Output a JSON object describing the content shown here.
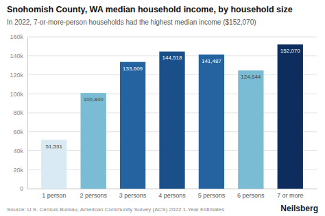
{
  "chart_data": {
    "type": "bar",
    "title": "Snohomish County, WA median household income, by household size",
    "subtitle": "In 2022, 7-or-more-person households had the highest median income ($152,070)",
    "annotations": [
      "Source: U.S. Census Bureau, American Community Survey (ACS) 2022 1-Year Estimates",
      "Neilsberg"
    ],
    "categories": [
      "1 person",
      "2 persons",
      "3 persons",
      "4 persons",
      "5 persons",
      "6 persons",
      "7 or more"
    ],
    "values": [
      51531,
      100840,
      133609,
      144518,
      141487,
      124644,
      152070
    ],
    "value_labels": [
      "51,531",
      "100,840",
      "133,609",
      "144,518",
      "141,487",
      "124,644",
      "152,070"
    ],
    "colors": [
      "#daeaf5",
      "#7bbcd5",
      "#2563a0",
      "#1a4f8a",
      "#2563a0",
      "#7bbcd5",
      "#0d2d5e"
    ],
    "ylim": [
      0,
      160000
    ],
    "yticks": [
      0,
      {
        "value": 20000,
        "label": "20k"
      },
      {
        "value": 40000,
        "label": "40k"
      },
      {
        "value": 60000,
        "label": "60k"
      },
      {
        "value": 80000,
        "label": "80k"
      },
      {
        "value": 100000,
        "label": "100k"
      },
      {
        "value": 120000,
        "label": "120k"
      },
      {
        "value": 140000,
        "label": "140k"
      },
      {
        "value": 160000,
        "label": "160k"
      }
    ],
    "grid": true,
    "data_labels": true
  }
}
